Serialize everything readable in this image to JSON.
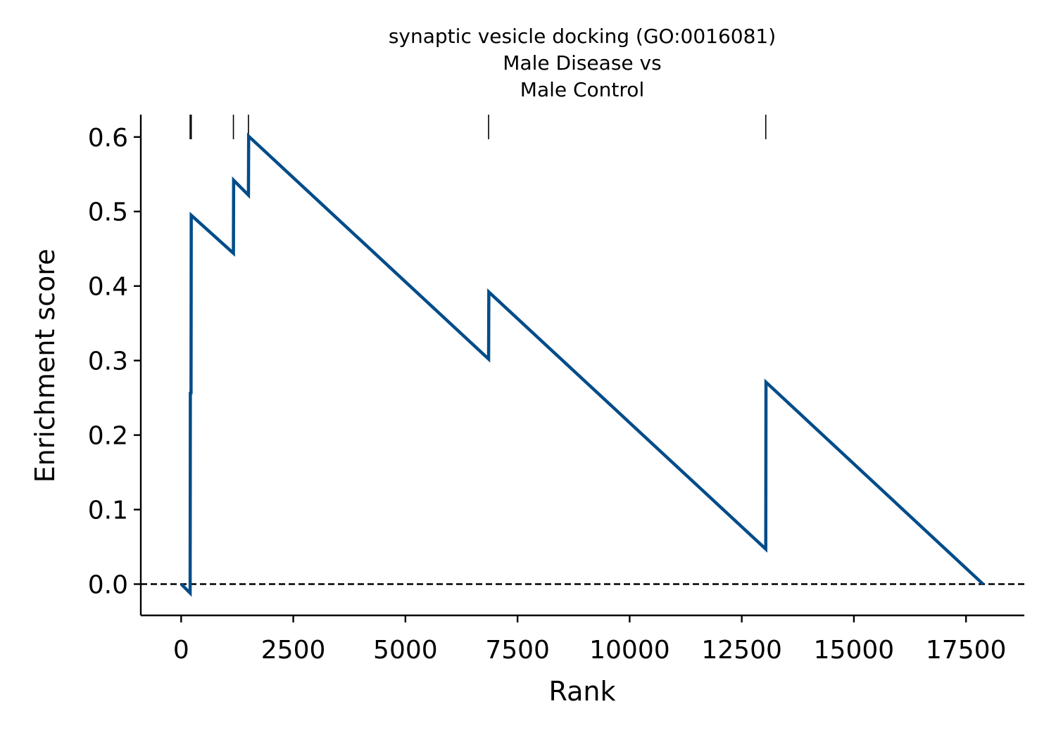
{
  "chart_data": {
    "type": "line",
    "title": [
      "synaptic vesicle docking (GO:0016081)",
      "Male Disease vs",
      "Male Control"
    ],
    "xlabel": "Rank",
    "ylabel": "Enrichment score",
    "xlim": [
      -900,
      18800
    ],
    "ylim": [
      -0.042,
      0.63
    ],
    "xticks": [
      0,
      2500,
      5000,
      7500,
      10000,
      12500,
      15000,
      17500
    ],
    "xtick_labels": [
      "0",
      "2500",
      "5000",
      "7500",
      "10000",
      "12500",
      "15000",
      "17500"
    ],
    "yticks": [
      0.0,
      0.1,
      0.2,
      0.3,
      0.4,
      0.5,
      0.6
    ],
    "ytick_labels": [
      "0.0",
      "0.1",
      "0.2",
      "0.3",
      "0.4",
      "0.5",
      "0.6"
    ],
    "grid": false,
    "reference_line": {
      "y": 0.0,
      "style": "dashed"
    },
    "series": [
      {
        "color": "#004c89",
        "x": [
          0,
          200,
          205,
          220,
          225,
          1165,
          1170,
          1500,
          1505,
          6855,
          6860,
          13035,
          13040,
          17880
        ],
        "y": [
          0.0,
          -0.012,
          0.258,
          0.255,
          0.495,
          0.444,
          0.542,
          0.522,
          0.601,
          0.302,
          0.392,
          0.047,
          0.271,
          0.0
        ]
      }
    ],
    "hit_ranks": [
      200,
      225,
      1165,
      1500,
      6855,
      13035
    ],
    "hit_mark_range": [
      0.597,
      0.63
    ]
  }
}
